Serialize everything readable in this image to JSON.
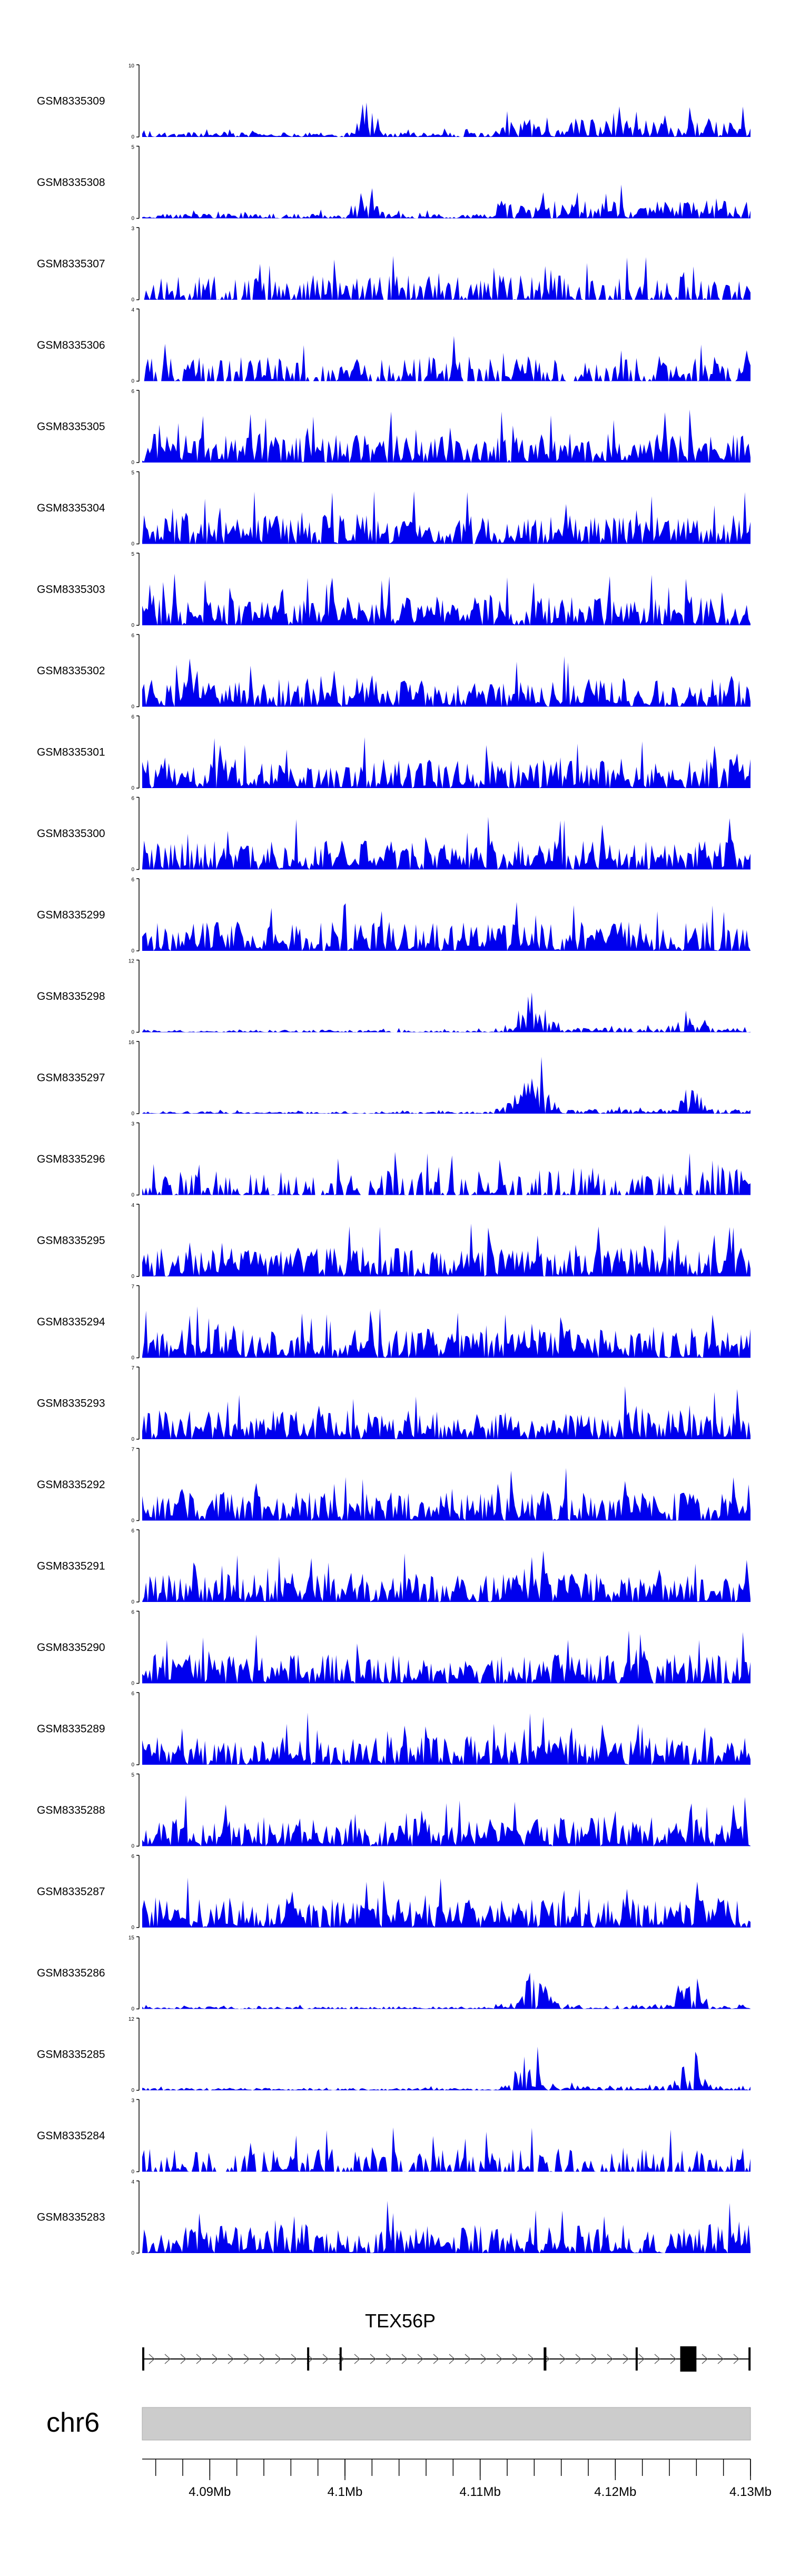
{
  "chart_data": {
    "type": "area",
    "title": "",
    "chromosome": "chr6",
    "region": [
      4085000,
      4130000
    ],
    "genome_axis": {
      "ticks": [
        4090000,
        4100000,
        4110000,
        4120000,
        4130000
      ],
      "tick_labels": [
        "4.09Mb",
        "4.1Mb",
        "4.11Mb",
        "4.12Mb",
        "4.13Mb"
      ],
      "minor_step": 2000
    },
    "gene": {
      "name": "TEX56P",
      "strand": "+",
      "start": 4085000,
      "end": 4130000,
      "exons": [
        [
          4085000,
          4085150
        ],
        [
          4097200,
          4097350
        ],
        [
          4099600,
          4099700
        ],
        [
          4114700,
          4114900
        ],
        [
          4121500,
          4121650
        ],
        [
          4124800,
          4126000
        ],
        [
          4129850,
          4130000
        ]
      ]
    },
    "series": [
      {
        "name": "GSM8335309",
        "ymax": 10,
        "seed": 309,
        "profile": "smallpeak"
      },
      {
        "name": "GSM8335308",
        "ymax": 5,
        "seed": 308,
        "profile": "smallpeak"
      },
      {
        "name": "GSM8335307",
        "ymax": 3,
        "seed": 307,
        "profile": "sparse"
      },
      {
        "name": "GSM8335306",
        "ymax": 4,
        "seed": 306,
        "profile": "sparse"
      },
      {
        "name": "GSM8335305",
        "ymax": 6,
        "seed": 305,
        "profile": "dense"
      },
      {
        "name": "GSM8335304",
        "ymax": 5,
        "seed": 304,
        "profile": "dense"
      },
      {
        "name": "GSM8335303",
        "ymax": 5,
        "seed": 303,
        "profile": "dense"
      },
      {
        "name": "GSM8335302",
        "ymax": 6,
        "seed": 302,
        "profile": "dense"
      },
      {
        "name": "GSM8335301",
        "ymax": 6,
        "seed": 301,
        "profile": "dense"
      },
      {
        "name": "GSM8335300",
        "ymax": 6,
        "seed": 300,
        "profile": "dense"
      },
      {
        "name": "GSM8335299",
        "ymax": 6,
        "seed": 299,
        "profile": "dense"
      },
      {
        "name": "GSM8335298",
        "ymax": 12,
        "seed": 298,
        "profile": "peak"
      },
      {
        "name": "GSM8335297",
        "ymax": 16,
        "seed": 297,
        "profile": "peak"
      },
      {
        "name": "GSM8335296",
        "ymax": 3,
        "seed": 296,
        "profile": "sparse"
      },
      {
        "name": "GSM8335295",
        "ymax": 4,
        "seed": 295,
        "profile": "dense"
      },
      {
        "name": "GSM8335294",
        "ymax": 7,
        "seed": 294,
        "profile": "dense"
      },
      {
        "name": "GSM8335293",
        "ymax": 7,
        "seed": 293,
        "profile": "dense"
      },
      {
        "name": "GSM8335292",
        "ymax": 7,
        "seed": 292,
        "profile": "dense"
      },
      {
        "name": "GSM8335291",
        "ymax": 6,
        "seed": 291,
        "profile": "dense"
      },
      {
        "name": "GSM8335290",
        "ymax": 6,
        "seed": 290,
        "profile": "dense"
      },
      {
        "name": "GSM8335289",
        "ymax": 6,
        "seed": 289,
        "profile": "dense"
      },
      {
        "name": "GSM8335288",
        "ymax": 5,
        "seed": 288,
        "profile": "dense"
      },
      {
        "name": "GSM8335287",
        "ymax": 6,
        "seed": 287,
        "profile": "dense"
      },
      {
        "name": "GSM8335286",
        "ymax": 15,
        "seed": 286,
        "profile": "peak"
      },
      {
        "name": "GSM8335285",
        "ymax": 12,
        "seed": 285,
        "profile": "peak"
      },
      {
        "name": "GSM8335284",
        "ymax": 3,
        "seed": 284,
        "profile": "sparse"
      },
      {
        "name": "GSM8335283",
        "ymax": 4,
        "seed": 283,
        "profile": "dense"
      }
    ],
    "ymin": 0,
    "colors": {
      "signal": "#0000ee",
      "ideogram": "#cccccc",
      "axis": "#000000"
    }
  }
}
